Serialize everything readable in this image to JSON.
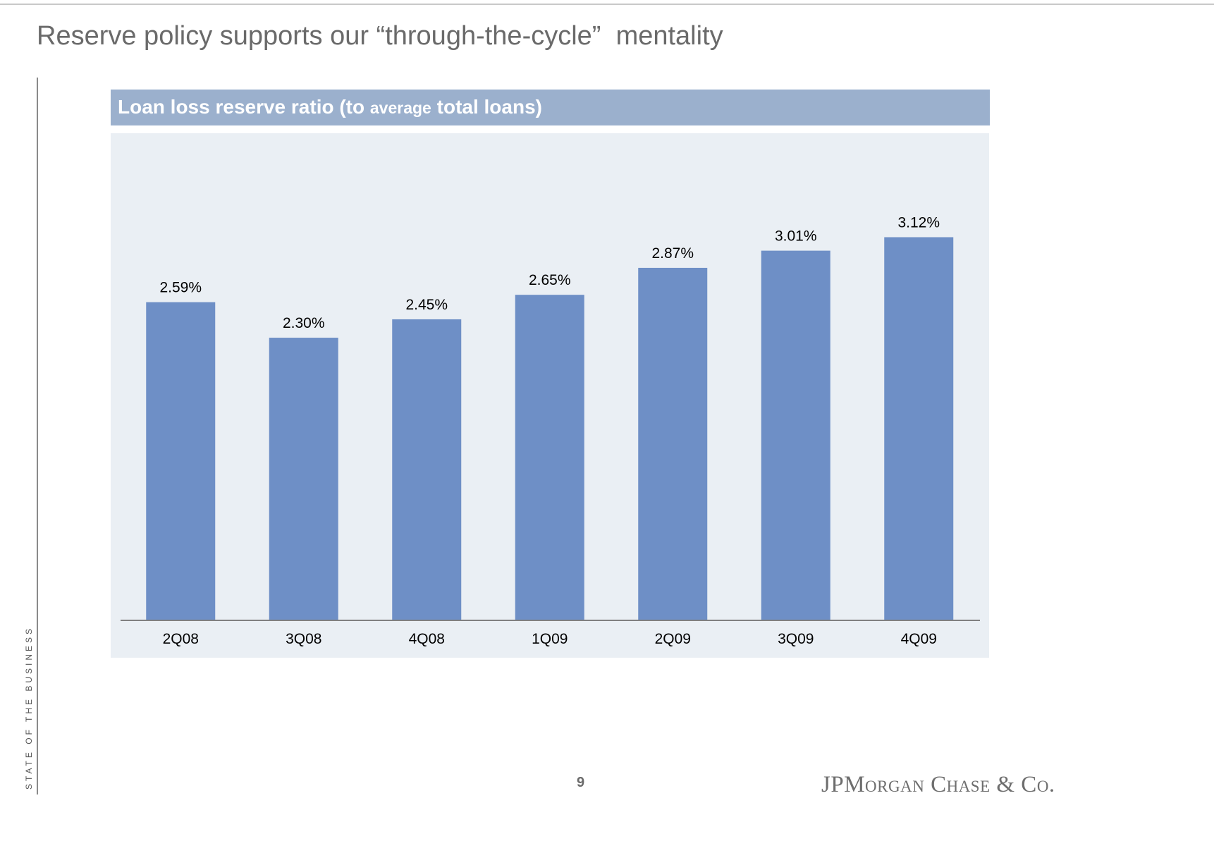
{
  "slide": {
    "title": "Reserve policy supports our “through-the-cycle”  mentality",
    "side_label": "STATE OF THE BUSINESS",
    "page_number": "9",
    "logo_text": "JPMorgan Chase & Co."
  },
  "chart_header": {
    "part1": "Loan loss reserve ratio (to ",
    "part2": "average",
    "part3": " total loans)"
  },
  "colors": {
    "bar": "#6e8fc6",
    "header": "#9bb0cd",
    "panel": "#eaeff4",
    "axis": "#808080"
  },
  "chart_data": {
    "type": "bar",
    "title": "Loan loss reserve ratio (to average total loans)",
    "categories": [
      "2Q08",
      "3Q08",
      "4Q08",
      "1Q09",
      "2Q09",
      "3Q09",
      "4Q09"
    ],
    "values": [
      2.59,
      2.3,
      2.45,
      2.65,
      2.87,
      3.01,
      3.12
    ],
    "value_labels": [
      "2.59%",
      "2.30%",
      "2.45%",
      "2.65%",
      "2.87%",
      "3.01%",
      "3.12%"
    ],
    "unit": "%",
    "ylim": [
      0,
      3.6
    ],
    "grid": false,
    "legend": "none"
  }
}
